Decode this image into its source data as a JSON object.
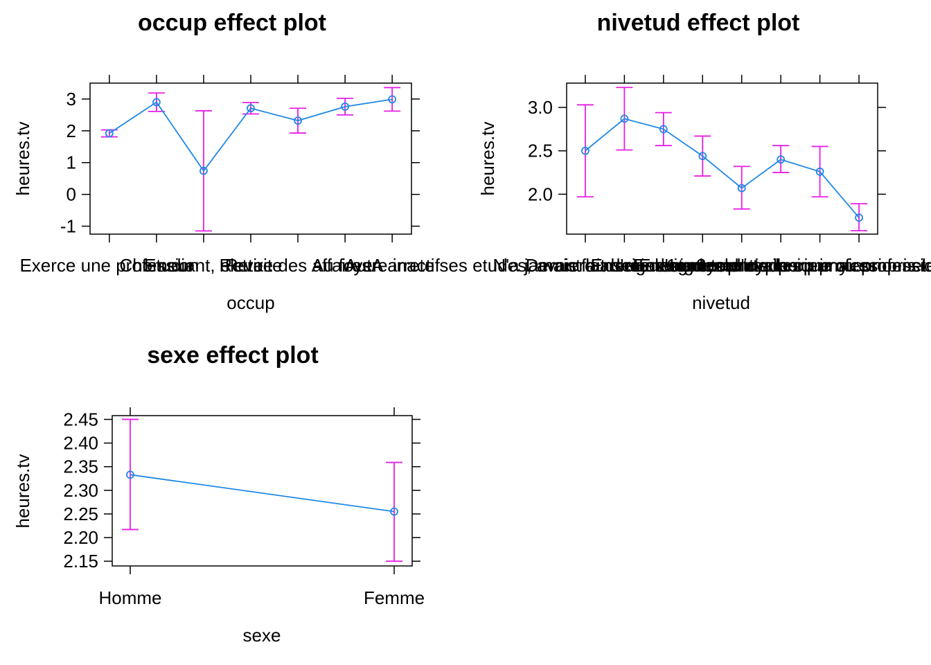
{
  "colors": {
    "line": "#1E88E5",
    "errorbar": "#E61EE6",
    "frame": "#000000",
    "text": "#000000"
  },
  "chart_data": [
    {
      "type": "line",
      "title": "occup effect plot",
      "xlabel": "occup",
      "ylabel": "heures.tv",
      "categories": [
        "Exerce une profession",
        "Chomeur",
        "Etudiant, eleve",
        "Retraite",
        "Retire des affaires",
        "Au foyer",
        "Autre inactif"
      ],
      "values": [
        1.92,
        2.9,
        0.74,
        2.71,
        2.32,
        2.76,
        2.99
      ],
      "lower": [
        1.81,
        2.61,
        -1.15,
        2.53,
        1.93,
        2.5,
        2.62
      ],
      "upper": [
        2.03,
        3.19,
        2.63,
        2.89,
        2.71,
        3.02,
        3.36
      ],
      "ylim": [
        -1.25,
        3.5
      ],
      "yticks": [
        "-1",
        "0",
        "1",
        "2",
        "3"
      ],
      "grid": false
    },
    {
      "type": "line",
      "title": "nivetud effect plot",
      "xlabel": "nivetud",
      "ylabel": "heures.tv",
      "categories": [
        "N'a jamais fait d'etudes",
        "A arrete ses etudes, avant la derniere annee d'etudes primaires",
        "Derniere annee d'etudes primaires",
        "1er cycle",
        "2eme cycle",
        "Enseignement technique ou professionnel court",
        "Enseignement technique ou professionnel long",
        "Enseignement superieur y compris technique superieur"
      ],
      "values": [
        2.5,
        2.87,
        2.75,
        2.44,
        2.07,
        2.4,
        2.26,
        1.73
      ],
      "lower": [
        1.97,
        2.51,
        2.56,
        2.21,
        1.83,
        2.25,
        1.97,
        1.58
      ],
      "upper": [
        3.03,
        3.23,
        2.94,
        2.67,
        2.32,
        2.56,
        2.55,
        1.89
      ],
      "ylim": [
        1.54,
        3.28
      ],
      "yticks": [
        "2.0",
        "2.5",
        "3.0"
      ],
      "grid": false
    },
    {
      "type": "line",
      "title": "sexe effect plot",
      "xlabel": "sexe",
      "ylabel": "heures.tv",
      "categories": [
        "Homme",
        "Femme"
      ],
      "values": [
        2.333,
        2.255
      ],
      "lower": [
        2.217,
        2.15
      ],
      "upper": [
        2.45,
        2.359
      ],
      "ylim": [
        2.14,
        2.458
      ],
      "yticks": [
        "2.15",
        "2.20",
        "2.25",
        "2.30",
        "2.35",
        "2.40",
        "2.45"
      ],
      "grid": false
    }
  ]
}
